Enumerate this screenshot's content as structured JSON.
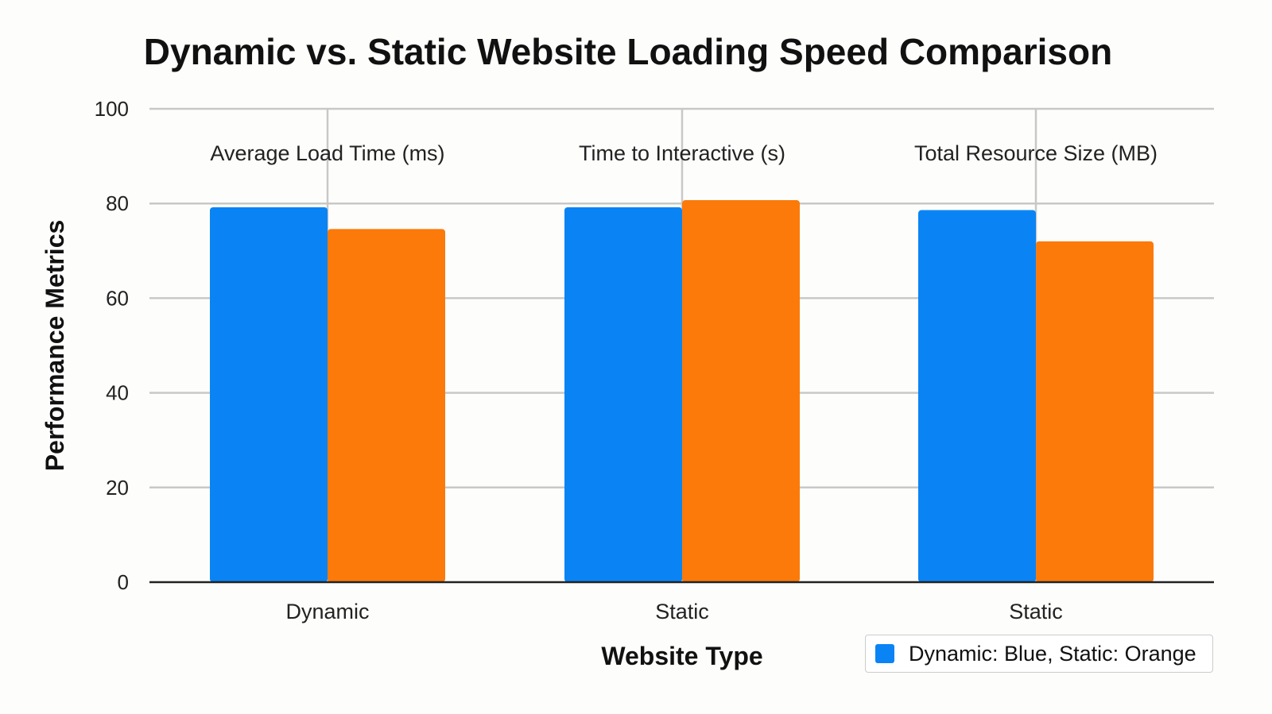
{
  "chart_data": {
    "type": "bar",
    "title": "Dynamic vs. Static Website Loading Speed Comparison",
    "xlabel": "Website Type",
    "ylabel": "Performance Metrics",
    "categories": [
      "Dynamic",
      "Static",
      "Static"
    ],
    "group_labels": [
      "Average Load Time (ms)",
      "Time to Interactive (s)",
      "Total Resource Size (MB)"
    ],
    "series": [
      {
        "values": [
          79.2,
          79.2,
          78.6
        ],
        "color": "#0a84f5"
      },
      {
        "values": [
          74.6,
          80.7,
          72.0
        ],
        "color": "#fb7a0a"
      }
    ],
    "ylim": [
      0,
      100
    ],
    "yticks": [
      0,
      20,
      40,
      60,
      80,
      100
    ],
    "grid": true,
    "legend": {
      "text": "Dynamic: Blue, Static: Orange",
      "placement": "bottom-right",
      "color": "#0a84f5"
    }
  }
}
